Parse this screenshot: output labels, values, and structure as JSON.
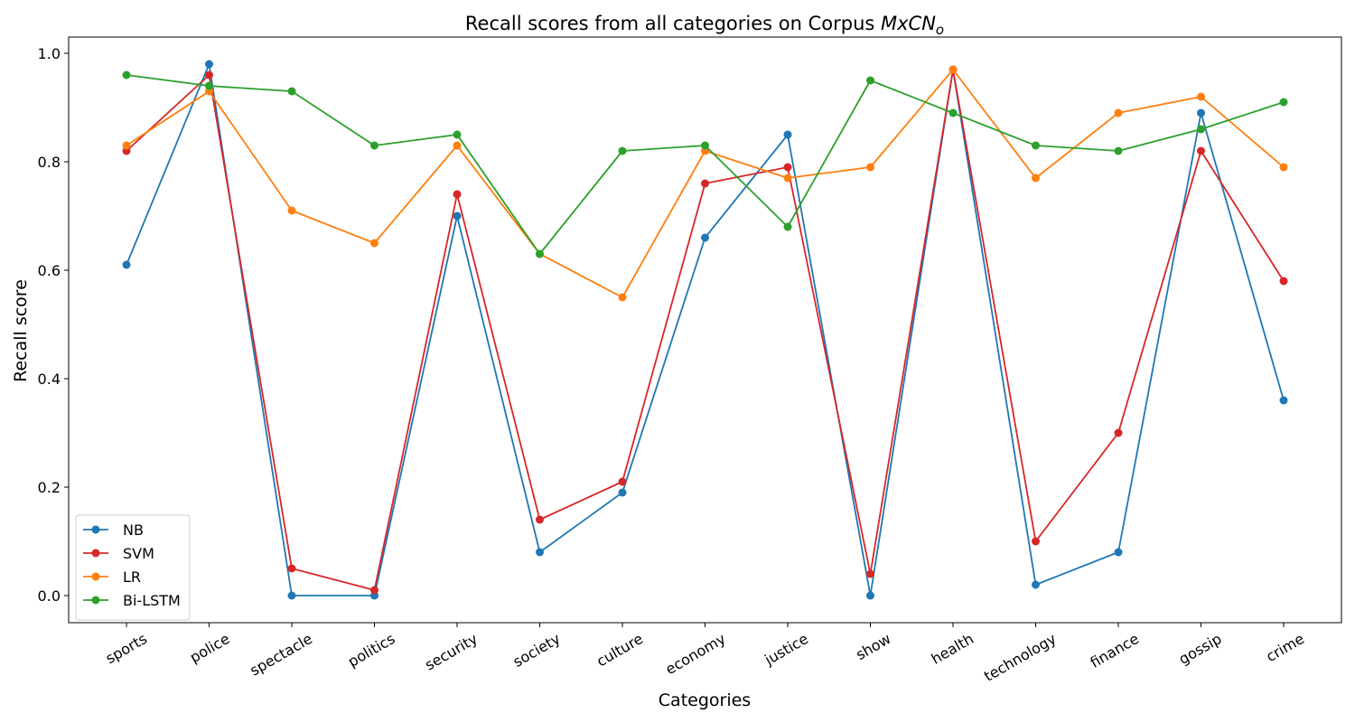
{
  "chart_data": {
    "type": "line",
    "title": "Recall scores from all categories on Corpus ",
    "title_math_base": "MxCN",
    "title_math_sub": "o",
    "xlabel": "Categories",
    "ylabel": "Recall score",
    "ylim": [
      -0.05,
      1.03
    ],
    "yticks": [
      0.0,
      0.2,
      0.4,
      0.6,
      0.8,
      1.0
    ],
    "ytick_labels": [
      "0.0",
      "0.2",
      "0.4",
      "0.6",
      "0.8",
      "1.0"
    ],
    "grid": false,
    "legend_position": "lower-left",
    "categories": [
      "sports",
      "police",
      "spectacle",
      "politics",
      "security",
      "society",
      "culture",
      "economy",
      "justice",
      "show",
      "health",
      "technology",
      "finance",
      "gossip",
      "crime"
    ],
    "series": [
      {
        "name": "NB",
        "color": "#1f77b4",
        "values": [
          0.61,
          0.98,
          0.0,
          0.0,
          0.7,
          0.08,
          0.19,
          0.66,
          0.85,
          0.0,
          0.97,
          0.02,
          0.08,
          0.89,
          0.36
        ]
      },
      {
        "name": "SVM",
        "color": "#d62728",
        "values": [
          0.82,
          0.96,
          0.05,
          0.01,
          0.74,
          0.14,
          0.21,
          0.76,
          0.79,
          0.04,
          0.97,
          0.1,
          0.3,
          0.82,
          0.58
        ]
      },
      {
        "name": "LR",
        "color": "#ff7f0e",
        "values": [
          0.83,
          0.93,
          0.71,
          0.65,
          0.83,
          0.63,
          0.55,
          0.82,
          0.77,
          0.79,
          0.97,
          0.77,
          0.89,
          0.92,
          0.79
        ]
      },
      {
        "name": "Bi-LSTM",
        "color": "#2ca02c",
        "values": [
          0.96,
          0.94,
          0.93,
          0.83,
          0.85,
          0.63,
          0.82,
          0.83,
          0.68,
          0.95,
          0.89,
          0.83,
          0.82,
          0.86,
          0.91
        ]
      }
    ]
  }
}
